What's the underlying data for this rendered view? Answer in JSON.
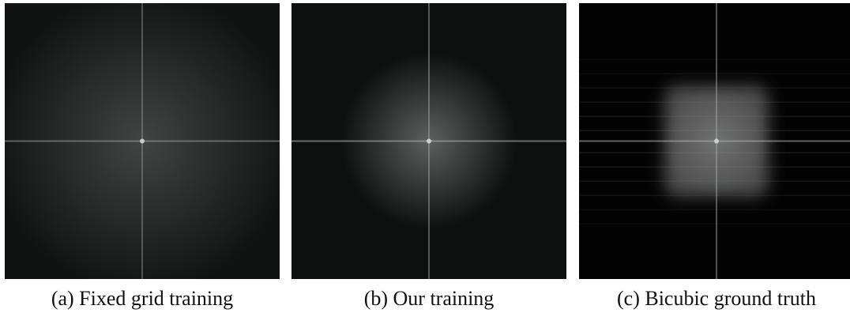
{
  "figure": {
    "panels": [
      {
        "id": "a",
        "caption": "(a) Fixed grid training",
        "base_color": "#111312",
        "glow_color": "#6a6c6b",
        "glow_opacity": 0.55,
        "glow_radius": 0.55,
        "axis_color": "#9a9c9b",
        "axis_opacity": 0.55,
        "square_opacity": 0.0,
        "dark_fraction": 0.0
      },
      {
        "id": "b",
        "caption": "(b) Our training",
        "base_color": "#0e100f",
        "glow_color": "#808281",
        "glow_opacity": 0.7,
        "glow_radius": 0.32,
        "axis_color": "#a8aaa9",
        "axis_opacity": 0.6,
        "square_opacity": 0.0,
        "dark_fraction": 0.0
      },
      {
        "id": "c",
        "caption": "(c) Bicubic ground truth",
        "base_color": "#030303",
        "glow_color": "#9a9c9b",
        "glow_opacity": 0.45,
        "glow_radius": 0.2,
        "axis_color": "#b0b2b1",
        "axis_opacity": 0.55,
        "square_opacity": 0.55,
        "dark_fraction": 1.0
      }
    ]
  }
}
